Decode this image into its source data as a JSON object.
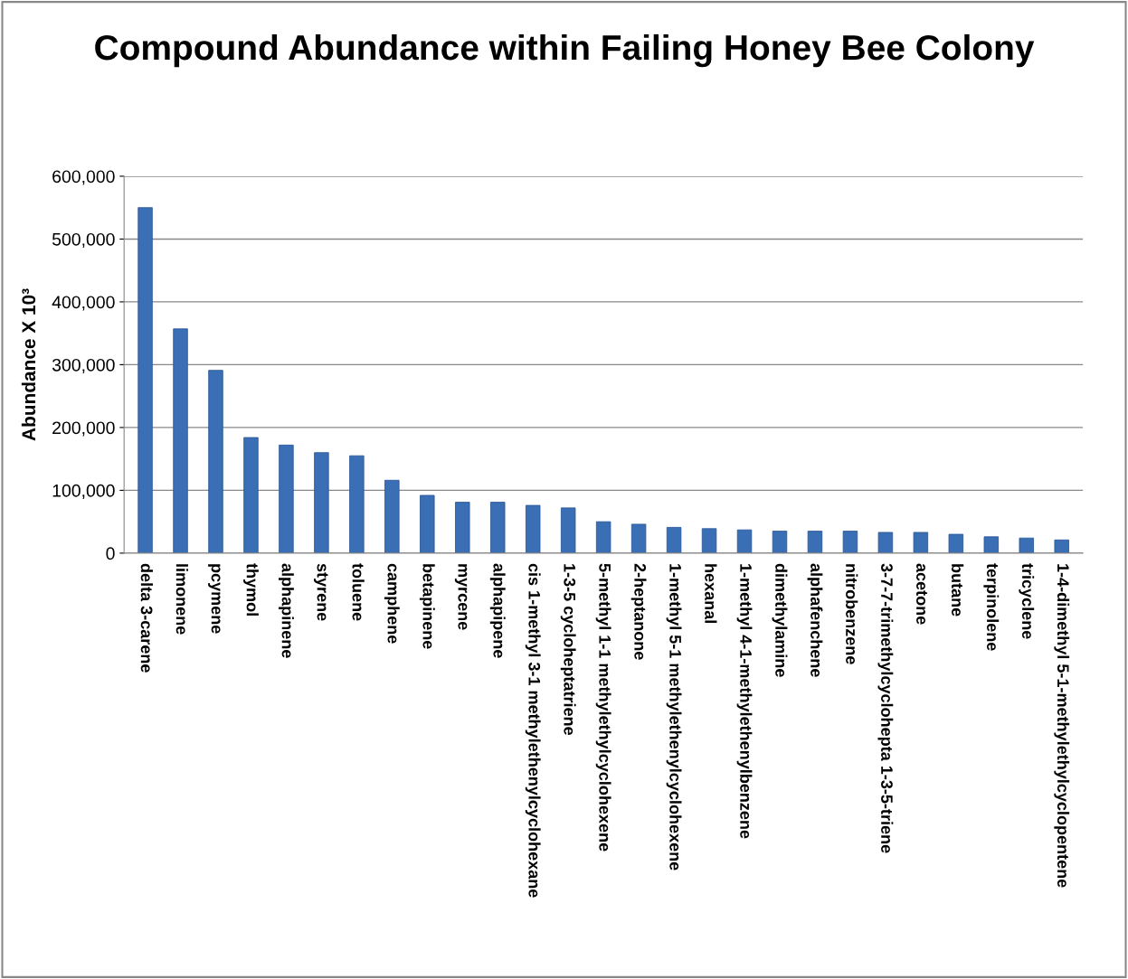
{
  "chart_data": {
    "type": "bar",
    "title": "Compound Abundance within Failing Honey Bee Colony",
    "ylabel": "Abundance X 10³",
    "categories": [
      "delta 3-carene",
      "limonene",
      "pcymene",
      "thymol",
      "alphapinene",
      "styrene",
      "toluene",
      "camphene",
      "betapinene",
      "myrcene",
      "alphapipene",
      "cis 1-methyl 3-1 methylethenylcyclohexane",
      "1-3-5 cycloheptatriene",
      "5-methyl 1-1 methylethylcyclohexene",
      "2-heptanone",
      "1-methyl 5-1 methylethenylcyclohexene",
      "hexanal",
      "1-methyl 4-1-methylethenylbenzene",
      "dimethylamine",
      "alphafenchene",
      "nitrobenzene",
      "3-7-7-trimethylcyclohepta 1-3-5-triene",
      "acetone",
      "butane",
      "terpinolene",
      "tricyclene",
      "1-4-dimethyl 5-1-methylethylcyclopentene"
    ],
    "values": [
      550000,
      357000,
      291000,
      184000,
      172000,
      160000,
      155000,
      116000,
      92000,
      81000,
      81000,
      76000,
      72000,
      50000,
      46000,
      41000,
      39000,
      37000,
      35000,
      35000,
      35000,
      33000,
      33000,
      30000,
      26000,
      24000,
      21000
    ],
    "color": "#3a6fb5",
    "ylim": [
      0,
      600000
    ],
    "yticks": [
      {
        "value": 0,
        "label": "0"
      },
      {
        "value": 100000,
        "label": "100,000"
      },
      {
        "value": 200000,
        "label": "200,000"
      },
      {
        "value": 300000,
        "label": "300,000"
      },
      {
        "value": 400000,
        "label": "400,000"
      },
      {
        "value": 500000,
        "label": "500,000"
      },
      {
        "value": 600000,
        "label": "600,000"
      }
    ],
    "grid": "y",
    "legend": false
  }
}
